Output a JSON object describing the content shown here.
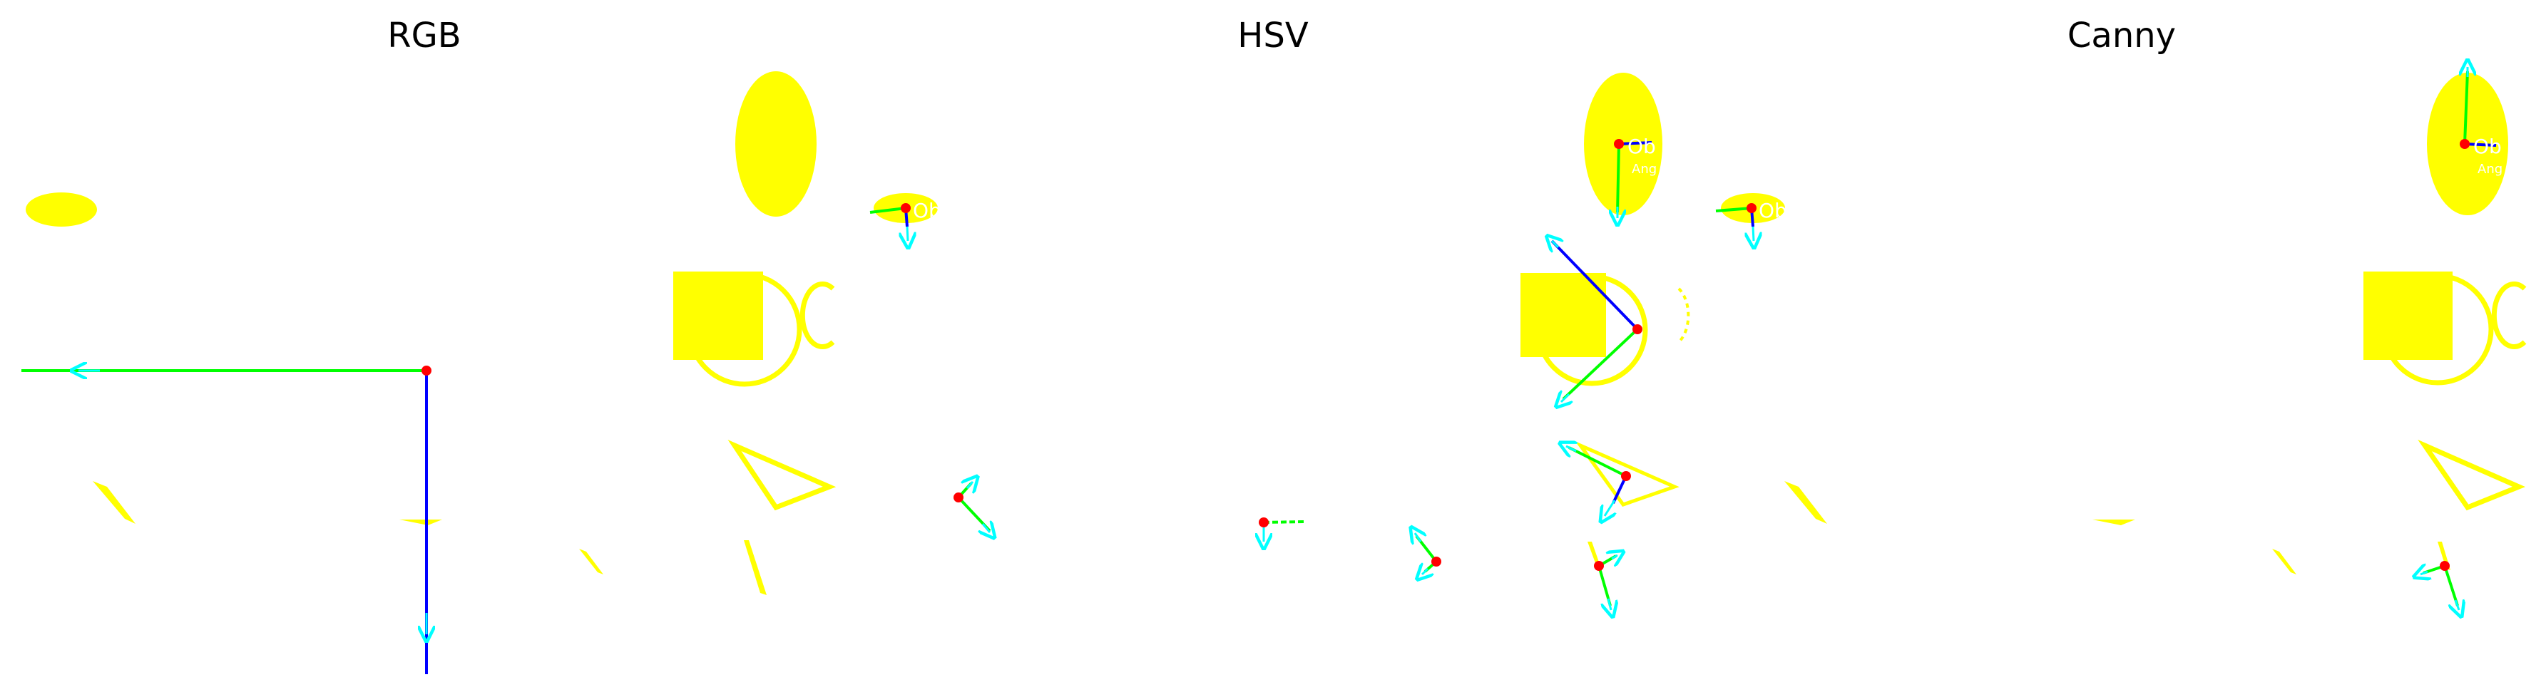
{
  "panels": [
    {
      "title": "RGB"
    },
    {
      "title": "HSV"
    },
    {
      "title": "Canny"
    }
  ],
  "colors": {
    "shape": "#ffff00",
    "axis_major": "#0000ff",
    "axis_minor": "#00ff00",
    "arrow": "#00ffff",
    "centroid": "#ff0000",
    "background": "#ffffff"
  },
  "overlay_labels": {
    "obj": "Ob",
    "angle": "Ang"
  }
}
